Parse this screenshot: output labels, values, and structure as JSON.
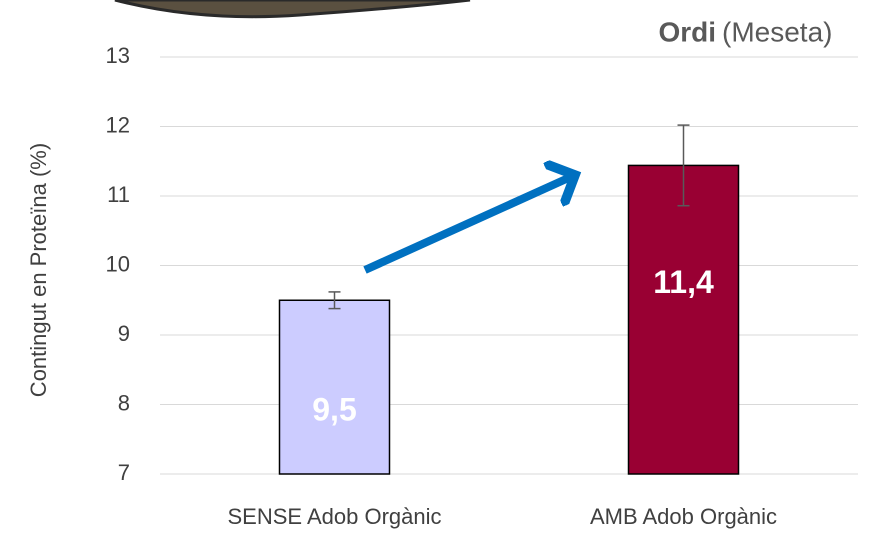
{
  "chart_data": {
    "type": "bar",
    "title": "Ordi",
    "title_note": "(Meseta)",
    "y_label": "Contingut en Proteïna (%)",
    "categories": [
      "SENSE Adob Orgànic",
      "AMB Adob Orgànic"
    ],
    "values": [
      9.5,
      11.44
    ],
    "value_labels": [
      "9,5",
      "11,4"
    ],
    "errors": [
      0.12,
      0.58
    ],
    "colors": [
      "#ccccff",
      "#990033"
    ],
    "value_label_color": "#ffffff",
    "ylim": [
      7,
      13
    ],
    "yticks": [
      7,
      8,
      9,
      10,
      11,
      12,
      13
    ],
    "grid": true
  }
}
